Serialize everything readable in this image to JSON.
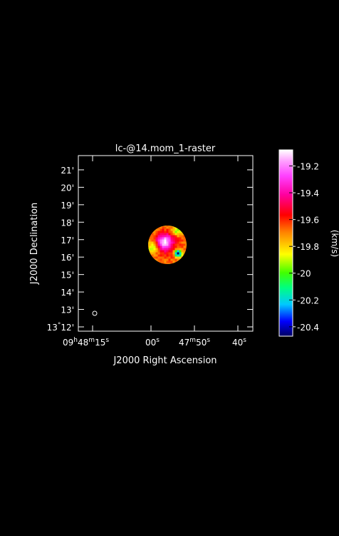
{
  "chart_data": {
    "type": "heatmap",
    "title": "lc-@14.mom_1-raster",
    "xlabel": "J2000 Right Ascension",
    "ylabel": "J2000 Declination",
    "x_ticks": [
      {
        "main": "09",
        "sup1": "h",
        "mid": "48",
        "sup2": "m",
        "tail": "15",
        "sup3": "s"
      },
      {
        "main": "",
        "sup1": "",
        "mid": "",
        "sup2": "",
        "tail": "00",
        "sup3": "s"
      },
      {
        "main": "47",
        "sup1": "m",
        "mid": "",
        "sup2": "",
        "tail": "50",
        "sup3": "s"
      },
      {
        "main": "",
        "sup1": "",
        "mid": "",
        "sup2": "",
        "tail": "40",
        "sup3": "s"
      }
    ],
    "y_ticks": [
      {
        "deg": "13",
        "degsym": "°",
        "min": "12'"
      },
      {
        "deg": "",
        "degsym": "",
        "min": "13'"
      },
      {
        "deg": "",
        "degsym": "",
        "min": "14'"
      },
      {
        "deg": "",
        "degsym": "",
        "min": "15'"
      },
      {
        "deg": "",
        "degsym": "",
        "min": "16'"
      },
      {
        "deg": "",
        "degsym": "",
        "min": "17'"
      },
      {
        "deg": "",
        "degsym": "",
        "min": "18'"
      },
      {
        "deg": "",
        "degsym": "",
        "min": "19'"
      },
      {
        "deg": "",
        "degsym": "",
        "min": "20'"
      },
      {
        "deg": "",
        "degsym": "",
        "min": "21'"
      }
    ],
    "colorbar": {
      "label": "(km/s)",
      "range": [
        -20.47,
        -19.08
      ],
      "ticks": [
        "-19.2",
        "-19.4",
        "-19.6",
        "-19.8",
        "-20",
        "-20.2",
        "-20.4"
      ],
      "tick_values": [
        -19.2,
        -19.4,
        -19.6,
        -19.8,
        -20.0,
        -20.2,
        -20.4
      ]
    },
    "source": {
      "center_dec_arcmin": 16.7,
      "radius_arcmin": 1.1,
      "peak_value": -19.15,
      "min_value": -20.45
    },
    "beam": {
      "shape": "ellipse"
    }
  }
}
